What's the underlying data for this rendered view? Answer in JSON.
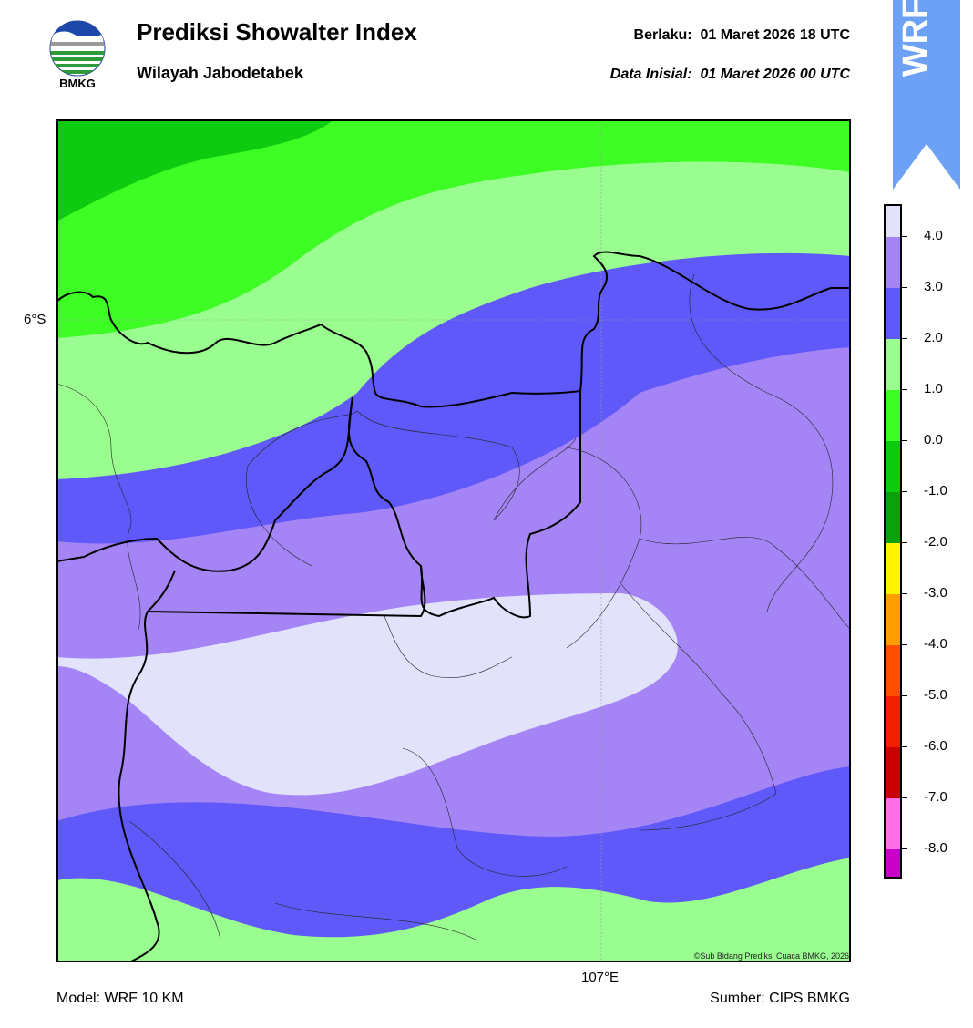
{
  "header": {
    "title": "Prediksi Showalter Index",
    "subtitle": "Wilayah Jabodetabek",
    "valid_label": "Berlaku:",
    "valid_time": "01 Maret 2026 18 UTC",
    "init_label": "Data Inisial:",
    "init_time": "01 Maret 2026 00 UTC",
    "logo_text": "BMKG",
    "banner_text": "WRF"
  },
  "map": {
    "lat_label": "6°S",
    "lon_label": "107°E",
    "credit": "©Sub Bidang Prediksi Cuaca BMKG, 2026"
  },
  "colorbar": {
    "ticks": [
      "4.0",
      "3.0",
      "2.0",
      "1.0",
      "0.0",
      "-1.0",
      "-2.0",
      "-3.0",
      "-4.0",
      "-5.0",
      "-6.0",
      "-7.0",
      "-8.0"
    ],
    "colors": [
      "#e2e2fb",
      "#a585f6",
      "#6059fa",
      "#99fe8f",
      "#3efd25",
      "#0dcb0f",
      "#0ba10a",
      "#fff400",
      "#ff9e00",
      "#ff4f00",
      "#f11f00",
      "#c80000",
      "#ff70e8",
      "#c800c8",
      "#66197f"
    ]
  },
  "footer": {
    "model": "Model: WRF 10 KM",
    "source": "Sumber: CIPS BMKG"
  }
}
